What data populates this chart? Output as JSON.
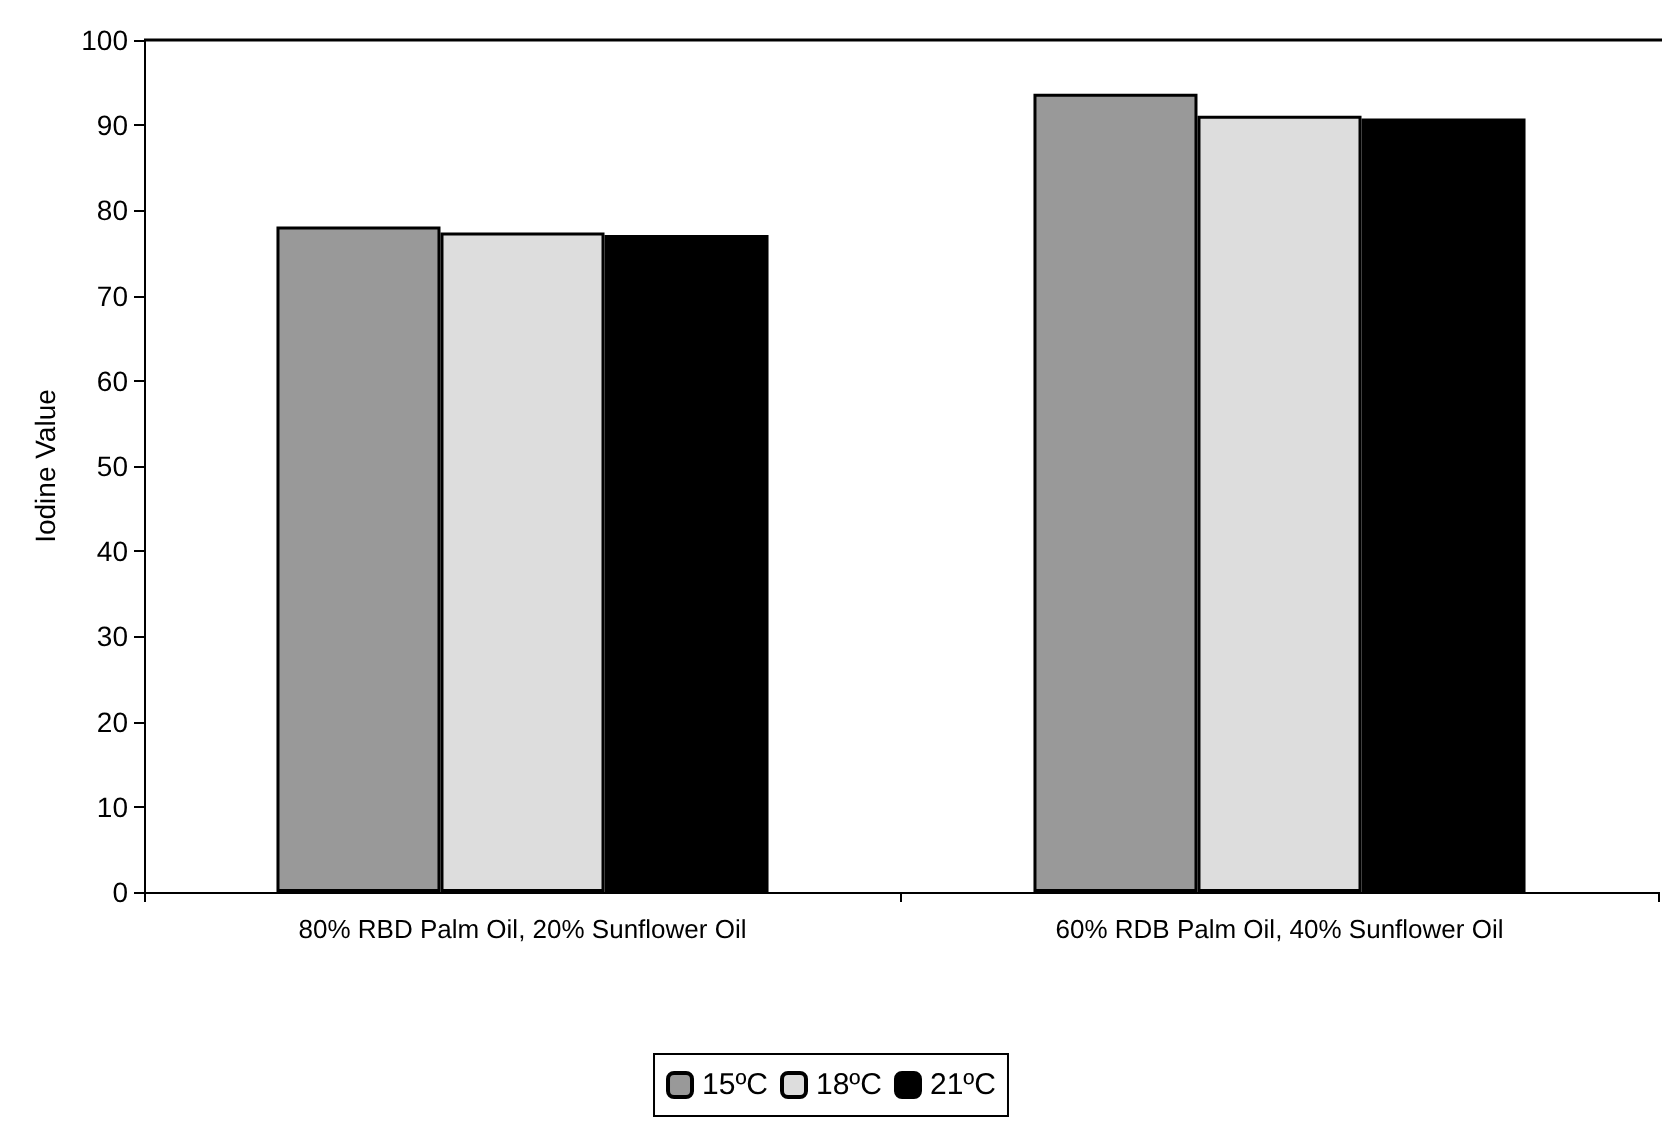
{
  "chart_data": {
    "type": "bar",
    "ylabel": "Iodine Value",
    "categories": [
      "80% RBD Palm Oil, 20% Sunflower Oil",
      "60% RDB Palm Oil, 40% Sunflower Oil"
    ],
    "series": [
      {
        "name": "15ºC",
        "color": "#999999",
        "values": [
          78.1,
          93.7
        ]
      },
      {
        "name": "18ºC",
        "color": "#dddddd",
        "values": [
          77.4,
          91.1
        ]
      },
      {
        "name": "21ºC",
        "color": "#000000",
        "values": [
          77.1,
          90.8
        ]
      }
    ],
    "ylim": [
      0,
      100
    ],
    "yticks": [
      0,
      10,
      20,
      30,
      40,
      50,
      60,
      70,
      80,
      90,
      100
    ],
    "grid": false,
    "legend": "bottom"
  }
}
